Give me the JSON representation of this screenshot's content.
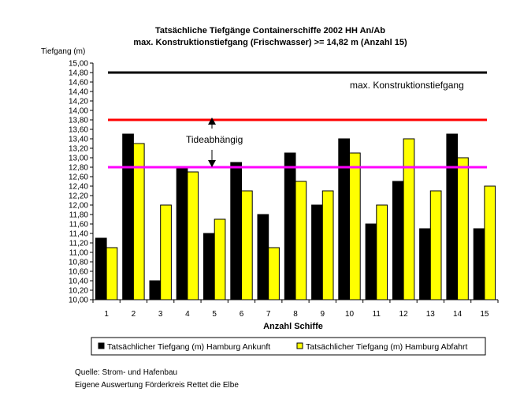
{
  "chart_data": {
    "type": "bar",
    "title": "Tatsächliche Tiefgänge Containerschiffe 2002 HH An/Ab",
    "subtitle": "max. Konstruktionstiefgang (Frischwasser) >= 14,82 m (Anzahl 15)",
    "ylabel": "Tiefgang (m)",
    "xlabel": "Anzahl Schiffe",
    "ylim": [
      10.0,
      15.0
    ],
    "ytick_step": 0.2,
    "grid": false,
    "legend_position": "bottom",
    "categories": [
      "1",
      "2",
      "3",
      "4",
      "5",
      "6",
      "7",
      "8",
      "9",
      "10",
      "11",
      "12",
      "13",
      "14",
      "15"
    ],
    "series": [
      {
        "name": "Tatsächlicher Tiefgang (m) Hamburg Ankunft",
        "color": "#000000",
        "values": [
          11.3,
          13.5,
          10.4,
          12.8,
          11.4,
          12.9,
          11.8,
          13.1,
          12.0,
          13.4,
          11.6,
          12.5,
          11.5,
          13.5,
          11.5
        ]
      },
      {
        "name": "Tatsächlicher Tiefgang (m) Hamburg Abfahrt",
        "color": "#FFFF00",
        "values": [
          11.1,
          13.3,
          12.0,
          12.7,
          11.7,
          12.3,
          11.1,
          12.5,
          12.3,
          13.1,
          12.0,
          13.4,
          12.3,
          13.0,
          12.4
        ]
      }
    ],
    "reference_lines": [
      {
        "value": 14.8,
        "color": "#000000"
      },
      {
        "value": 13.8,
        "color": "#FF0000"
      },
      {
        "value": 12.8,
        "color": "#FF00FF"
      }
    ],
    "annotations": [
      {
        "text": "max. Konstruktionstiefgang"
      },
      {
        "text": "Tideabhängig"
      }
    ]
  },
  "footer": {
    "line1": "Quelle: Strom- und Hafenbau",
    "line2": "Eigene Auswertung Förderkreis Rettet die Elbe"
  }
}
